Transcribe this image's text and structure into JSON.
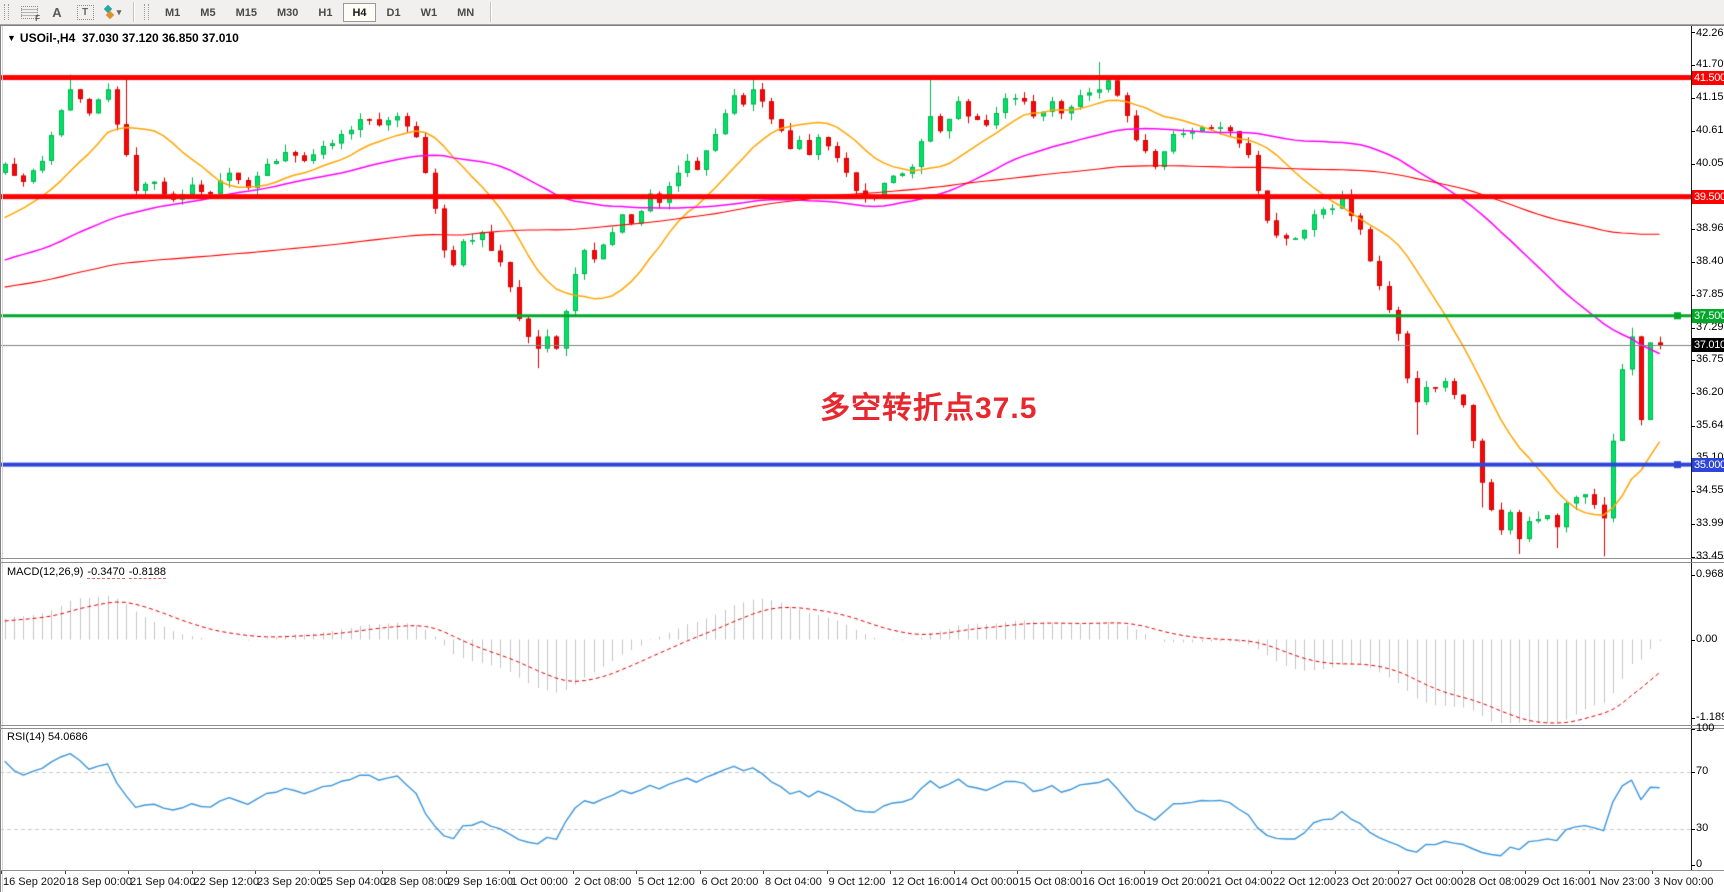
{
  "toolbar": {
    "tools": [
      {
        "name": "grid-template-icon",
        "glyph": "F"
      },
      {
        "name": "font-a-icon",
        "glyph": "A"
      },
      {
        "name": "text-box-icon",
        "glyph": "T"
      },
      {
        "name": "object-arrows-icon",
        "glyph": "▾"
      }
    ],
    "timeframes": [
      "M1",
      "M5",
      "M15",
      "M30",
      "H1",
      "H4",
      "D1",
      "W1",
      "MN"
    ],
    "active_timeframe": "H4"
  },
  "chart": {
    "title": "USOil-,H4",
    "ohlc_text": "37.030 37.120 36.850 37.010",
    "annotation": {
      "text": "多空转折点37.5",
      "color": "#E8282F"
    }
  },
  "price_axis": {
    "ticks": [
      {
        "label": "42.260",
        "value": 42.26
      },
      {
        "label": "41.705",
        "value": 41.705
      },
      {
        "label": "41.150",
        "value": 41.15
      },
      {
        "label": "40.610",
        "value": 40.61
      },
      {
        "label": "40.055",
        "value": 40.055
      },
      {
        "label": "39.500",
        "value": 39.5
      },
      {
        "label": "38.960",
        "value": 38.96
      },
      {
        "label": "38.405",
        "value": 38.405
      },
      {
        "label": "37.850",
        "value": 37.85
      },
      {
        "label": "37.295",
        "value": 37.295
      },
      {
        "label": "36.755",
        "value": 36.755
      },
      {
        "label": "36.200",
        "value": 36.2
      },
      {
        "label": "35.645",
        "value": 35.645
      },
      {
        "label": "35.105",
        "value": 35.105
      },
      {
        "label": "34.550",
        "value": 34.55
      },
      {
        "label": "33.995",
        "value": 33.995
      },
      {
        "label": "33.455",
        "value": 33.455
      }
    ]
  },
  "levels": [
    {
      "label": "41.500",
      "value": 41.5,
      "color": "#FF0000",
      "line_width": 5,
      "handle": false
    },
    {
      "label": "39.500",
      "value": 39.5,
      "color": "#FF0000",
      "line_width": 5,
      "handle": false
    },
    {
      "label": "37.500",
      "value": 37.5,
      "color": "#00A82A",
      "line_width": 3,
      "handle": true
    },
    {
      "label": "35.000",
      "value": 35.0,
      "color": "#2E46D8",
      "line_width": 4,
      "handle": true
    }
  ],
  "current_price": {
    "label": "37.010",
    "value": 37.01,
    "line_color": "#808080",
    "badge_color": "#000000"
  },
  "macd": {
    "name": "MACD(12,26,9)",
    "value_main": "-0.3470",
    "value_signal": "-0.8188",
    "ticks": [
      {
        "label": "0.9688",
        "value": 0.9688
      },
      {
        "label": "0.00",
        "value": 0
      },
      {
        "label": "-1.1896",
        "value": -1.1896
      }
    ],
    "histogram_color": "#C4C4C4",
    "signal_color": "#E00000"
  },
  "rsi": {
    "name": "RSI(14)",
    "value": "54.0686",
    "ticks": [
      {
        "label": "100",
        "value": 100
      },
      {
        "label": "70",
        "value": 70
      },
      {
        "label": "30",
        "value": 30
      },
      {
        "label": "0",
        "value": 0
      }
    ],
    "line_color": "#3D96DB",
    "level_lines": [
      70,
      30
    ],
    "level_line_color": "#C8C8C8"
  },
  "time_axis": {
    "labels": [
      "16 Sep 2020",
      "18 Sep 00:00",
      "21 Sep 04:00",
      "22 Sep 12:00",
      "23 Sep 20:00",
      "25 Sep 04:00",
      "28 Sep 08:00",
      "29 Sep 16:00",
      "1 Oct 00:00",
      "2 Oct 08:00",
      "5 Oct 12:00",
      "6 Oct 20:00",
      "8 Oct 04:00",
      "9 Oct 12:00",
      "12 Oct 16:00",
      "14 Oct 00:00",
      "15 Oct 08:00",
      "16 Oct 16:00",
      "19 Oct 20:00",
      "21 Oct 04:00",
      "22 Oct 12:00",
      "23 Oct 20:00",
      "27 Oct 00:00",
      "28 Oct 08:00",
      "29 Oct 16:00",
      "1 Nov 23:00",
      "3 Nov 00:00"
    ]
  },
  "chart_data": {
    "type": "candlestick",
    "symbol": "USOil-",
    "timeframe": "H4",
    "price_range": [
      33.455,
      42.26
    ],
    "candle_count": 178,
    "bull_color": "#00E368",
    "bull_border": "#00B44F",
    "bear_color": "#F40A0A",
    "bear_border": "#D50000",
    "moving_averages": [
      {
        "period": 12,
        "color": "#FFA500"
      },
      {
        "period": 48,
        "color": "#FF00FF"
      },
      {
        "period": 120,
        "color": "#FF0000"
      }
    ],
    "last_candle": {
      "open": 37.03,
      "high": 37.12,
      "low": 36.85,
      "close": 37.01
    },
    "close_anchors": [
      [
        0,
        40.05
      ],
      [
        2,
        39.75
      ],
      [
        4,
        40.1
      ],
      [
        6,
        40.95
      ],
      [
        7,
        41.3
      ],
      [
        9,
        40.9
      ],
      [
        11,
        41.3
      ],
      [
        13,
        40.2
      ],
      [
        14,
        39.6
      ],
      [
        16,
        39.75
      ],
      [
        18,
        39.45
      ],
      [
        20,
        39.7
      ],
      [
        22,
        39.55
      ],
      [
        24,
        39.9
      ],
      [
        26,
        39.65
      ],
      [
        28,
        40.05
      ],
      [
        30,
        40.25
      ],
      [
        32,
        40.1
      ],
      [
        34,
        40.35
      ],
      [
        36,
        40.55
      ],
      [
        38,
        40.8
      ],
      [
        40,
        40.7
      ],
      [
        42,
        40.85
      ],
      [
        44,
        40.5
      ],
      [
        45,
        39.9
      ],
      [
        46,
        39.3
      ],
      [
        47,
        38.6
      ],
      [
        48,
        38.35
      ],
      [
        49,
        38.75
      ],
      [
        51,
        38.9
      ],
      [
        53,
        38.4
      ],
      [
        55,
        37.45
      ],
      [
        57,
        36.95
      ],
      [
        58,
        37.15
      ],
      [
        59,
        36.95
      ],
      [
        61,
        38.2
      ],
      [
        62,
        38.6
      ],
      [
        63,
        38.45
      ],
      [
        65,
        38.9
      ],
      [
        66,
        39.2
      ],
      [
        67,
        39.05
      ],
      [
        69,
        39.55
      ],
      [
        70,
        39.4
      ],
      [
        72,
        39.9
      ],
      [
        73,
        40.1
      ],
      [
        74,
        39.95
      ],
      [
        76,
        40.55
      ],
      [
        78,
        41.2
      ],
      [
        79,
        41.05
      ],
      [
        80,
        41.3
      ],
      [
        82,
        40.8
      ],
      [
        84,
        40.3
      ],
      [
        85,
        40.45
      ],
      [
        86,
        40.2
      ],
      [
        87,
        40.5
      ],
      [
        89,
        40.15
      ],
      [
        91,
        39.6
      ],
      [
        93,
        39.5
      ],
      [
        95,
        39.85
      ],
      [
        97,
        40.0
      ],
      [
        99,
        40.85
      ],
      [
        100,
        40.6
      ],
      [
        102,
        41.1
      ],
      [
        103,
        40.85
      ],
      [
        105,
        40.7
      ],
      [
        107,
        41.15
      ],
      [
        109,
        41.1
      ],
      [
        110,
        40.85
      ],
      [
        112,
        41.1
      ],
      [
        113,
        40.9
      ],
      [
        115,
        41.2
      ],
      [
        117,
        41.3
      ],
      [
        118,
        41.45
      ],
      [
        119,
        41.2
      ],
      [
        121,
        40.45
      ],
      [
        123,
        40.0
      ],
      [
        125,
        40.55
      ],
      [
        127,
        40.6
      ],
      [
        129,
        40.65
      ],
      [
        131,
        40.6
      ],
      [
        133,
        40.2
      ],
      [
        134,
        39.6
      ],
      [
        135,
        39.1
      ],
      [
        136,
        38.85
      ],
      [
        138,
        38.8
      ],
      [
        140,
        39.2
      ],
      [
        142,
        39.3
      ],
      [
        143,
        39.5
      ],
      [
        145,
        38.95
      ],
      [
        147,
        38.0
      ],
      [
        149,
        37.2
      ],
      [
        150,
        36.45
      ],
      [
        151,
        36.05
      ],
      [
        152,
        36.3
      ],
      [
        154,
        36.4
      ],
      [
        156,
        36.0
      ],
      [
        157,
        35.4
      ],
      [
        158,
        34.7
      ],
      [
        160,
        33.9
      ],
      [
        161,
        34.2
      ],
      [
        162,
        33.75
      ],
      [
        163,
        34.05
      ],
      [
        165,
        34.15
      ],
      [
        166,
        33.95
      ],
      [
        167,
        34.35
      ],
      [
        169,
        34.5
      ],
      [
        171,
        34.1
      ],
      [
        172,
        35.4
      ],
      [
        173,
        36.6
      ],
      [
        174,
        37.15
      ],
      [
        175,
        35.75
      ],
      [
        176,
        37.05
      ],
      [
        177,
        37.01
      ]
    ],
    "wick_spikes": [
      {
        "i": 7,
        "high": 41.55
      },
      {
        "i": 13,
        "high": 41.5
      },
      {
        "i": 57,
        "low": 36.62
      },
      {
        "i": 80,
        "high": 41.5
      },
      {
        "i": 99,
        "high": 41.52
      },
      {
        "i": 117,
        "high": 41.76
      },
      {
        "i": 151,
        "low": 35.5
      },
      {
        "i": 158,
        "low": 34.28
      },
      {
        "i": 162,
        "low": 33.5
      },
      {
        "i": 166,
        "low": 33.6
      },
      {
        "i": 171,
        "low": 33.46
      },
      {
        "i": 174,
        "high": 37.3
      }
    ]
  }
}
